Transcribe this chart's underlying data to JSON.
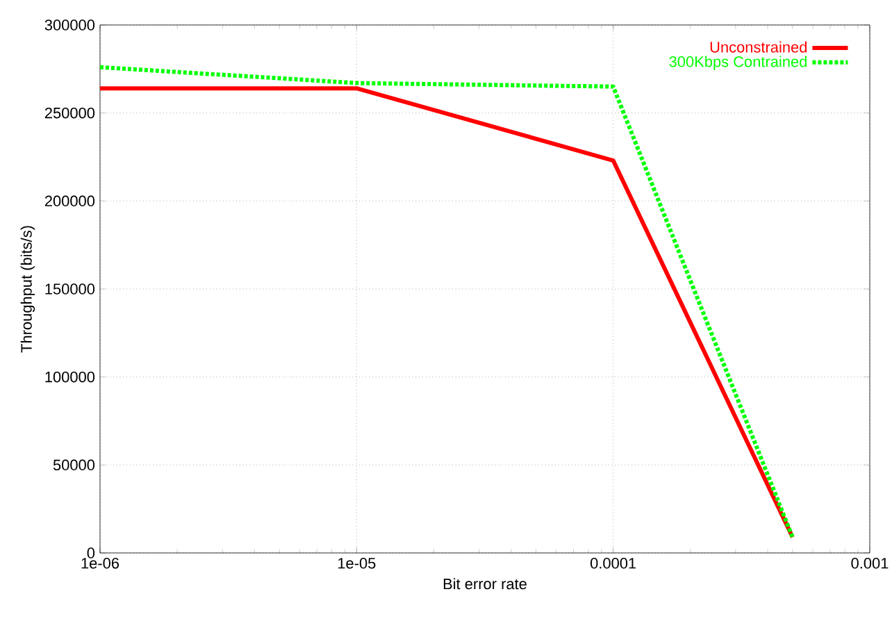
{
  "chart_data": {
    "type": "line",
    "xlabel": "Bit error rate",
    "ylabel": "Throughput (bits/s)",
    "log": "x",
    "grid": true,
    "legend": "top right",
    "xlim": [
      1e-06,
      0.001
    ],
    "xticks": [
      {
        "value": 1e-06,
        "label": "1e-06"
      },
      {
        "value": 1e-05,
        "label": "1e-05"
      },
      {
        "value": 0.0001,
        "label": "0.0001"
      },
      {
        "value": 0.001,
        "label": "0.001"
      }
    ],
    "ylim": [
      0,
      300000
    ],
    "yticks": [
      0,
      50000,
      100000,
      150000,
      200000,
      250000,
      300000
    ],
    "x": [
      1e-06,
      1e-05,
      0.0001,
      0.0005
    ],
    "series": [
      {
        "name": "Unconstrained",
        "color": "#ff0000",
        "line_style": "solid",
        "values": [
          264000,
          264000,
          223000,
          9000
        ]
      },
      {
        "name": "300Kbps Contrained",
        "color": "#00ff00",
        "line_style": "dotted",
        "values": [
          276000,
          267000,
          265000,
          9000
        ]
      }
    ]
  }
}
